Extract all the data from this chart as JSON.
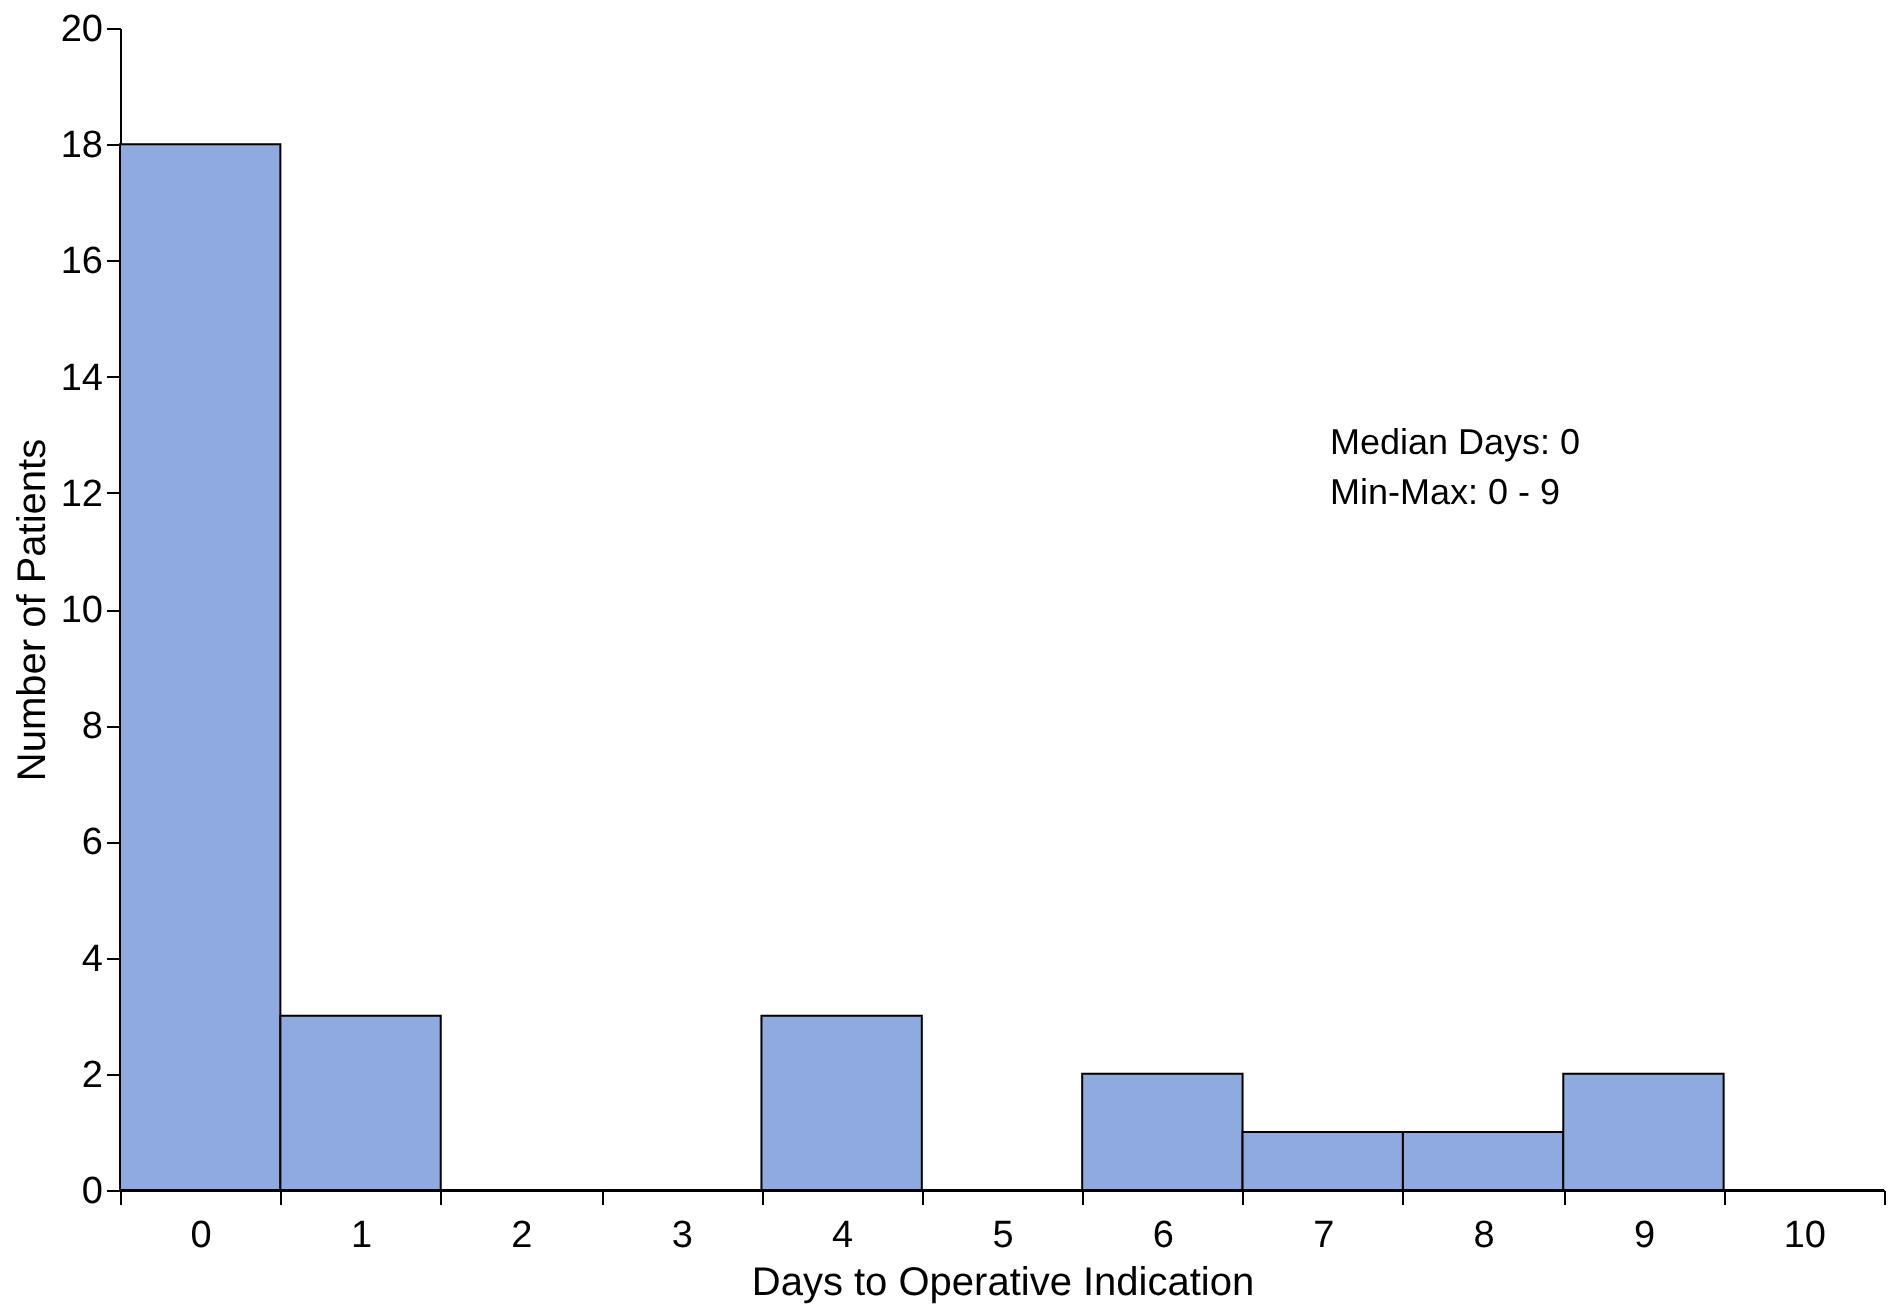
{
  "chart_data": {
    "type": "bar",
    "xlabel": "Days to Operative Indication",
    "ylabel": "Number of Patients",
    "categories": [
      "0",
      "1",
      "2",
      "3",
      "4",
      "5",
      "6",
      "7",
      "8",
      "9",
      "10"
    ],
    "values": [
      18,
      3,
      0,
      0,
      3,
      0,
      2,
      1,
      1,
      2,
      0
    ],
    "color": "#8eaadf",
    "ylim": [
      0,
      20
    ],
    "yticks": [
      0,
      2,
      4,
      6,
      8,
      10,
      12,
      14,
      16,
      18,
      20
    ],
    "grid": false,
    "annotations": [
      "Median Days: 0",
      "Min-Max: 0 - 9"
    ]
  }
}
